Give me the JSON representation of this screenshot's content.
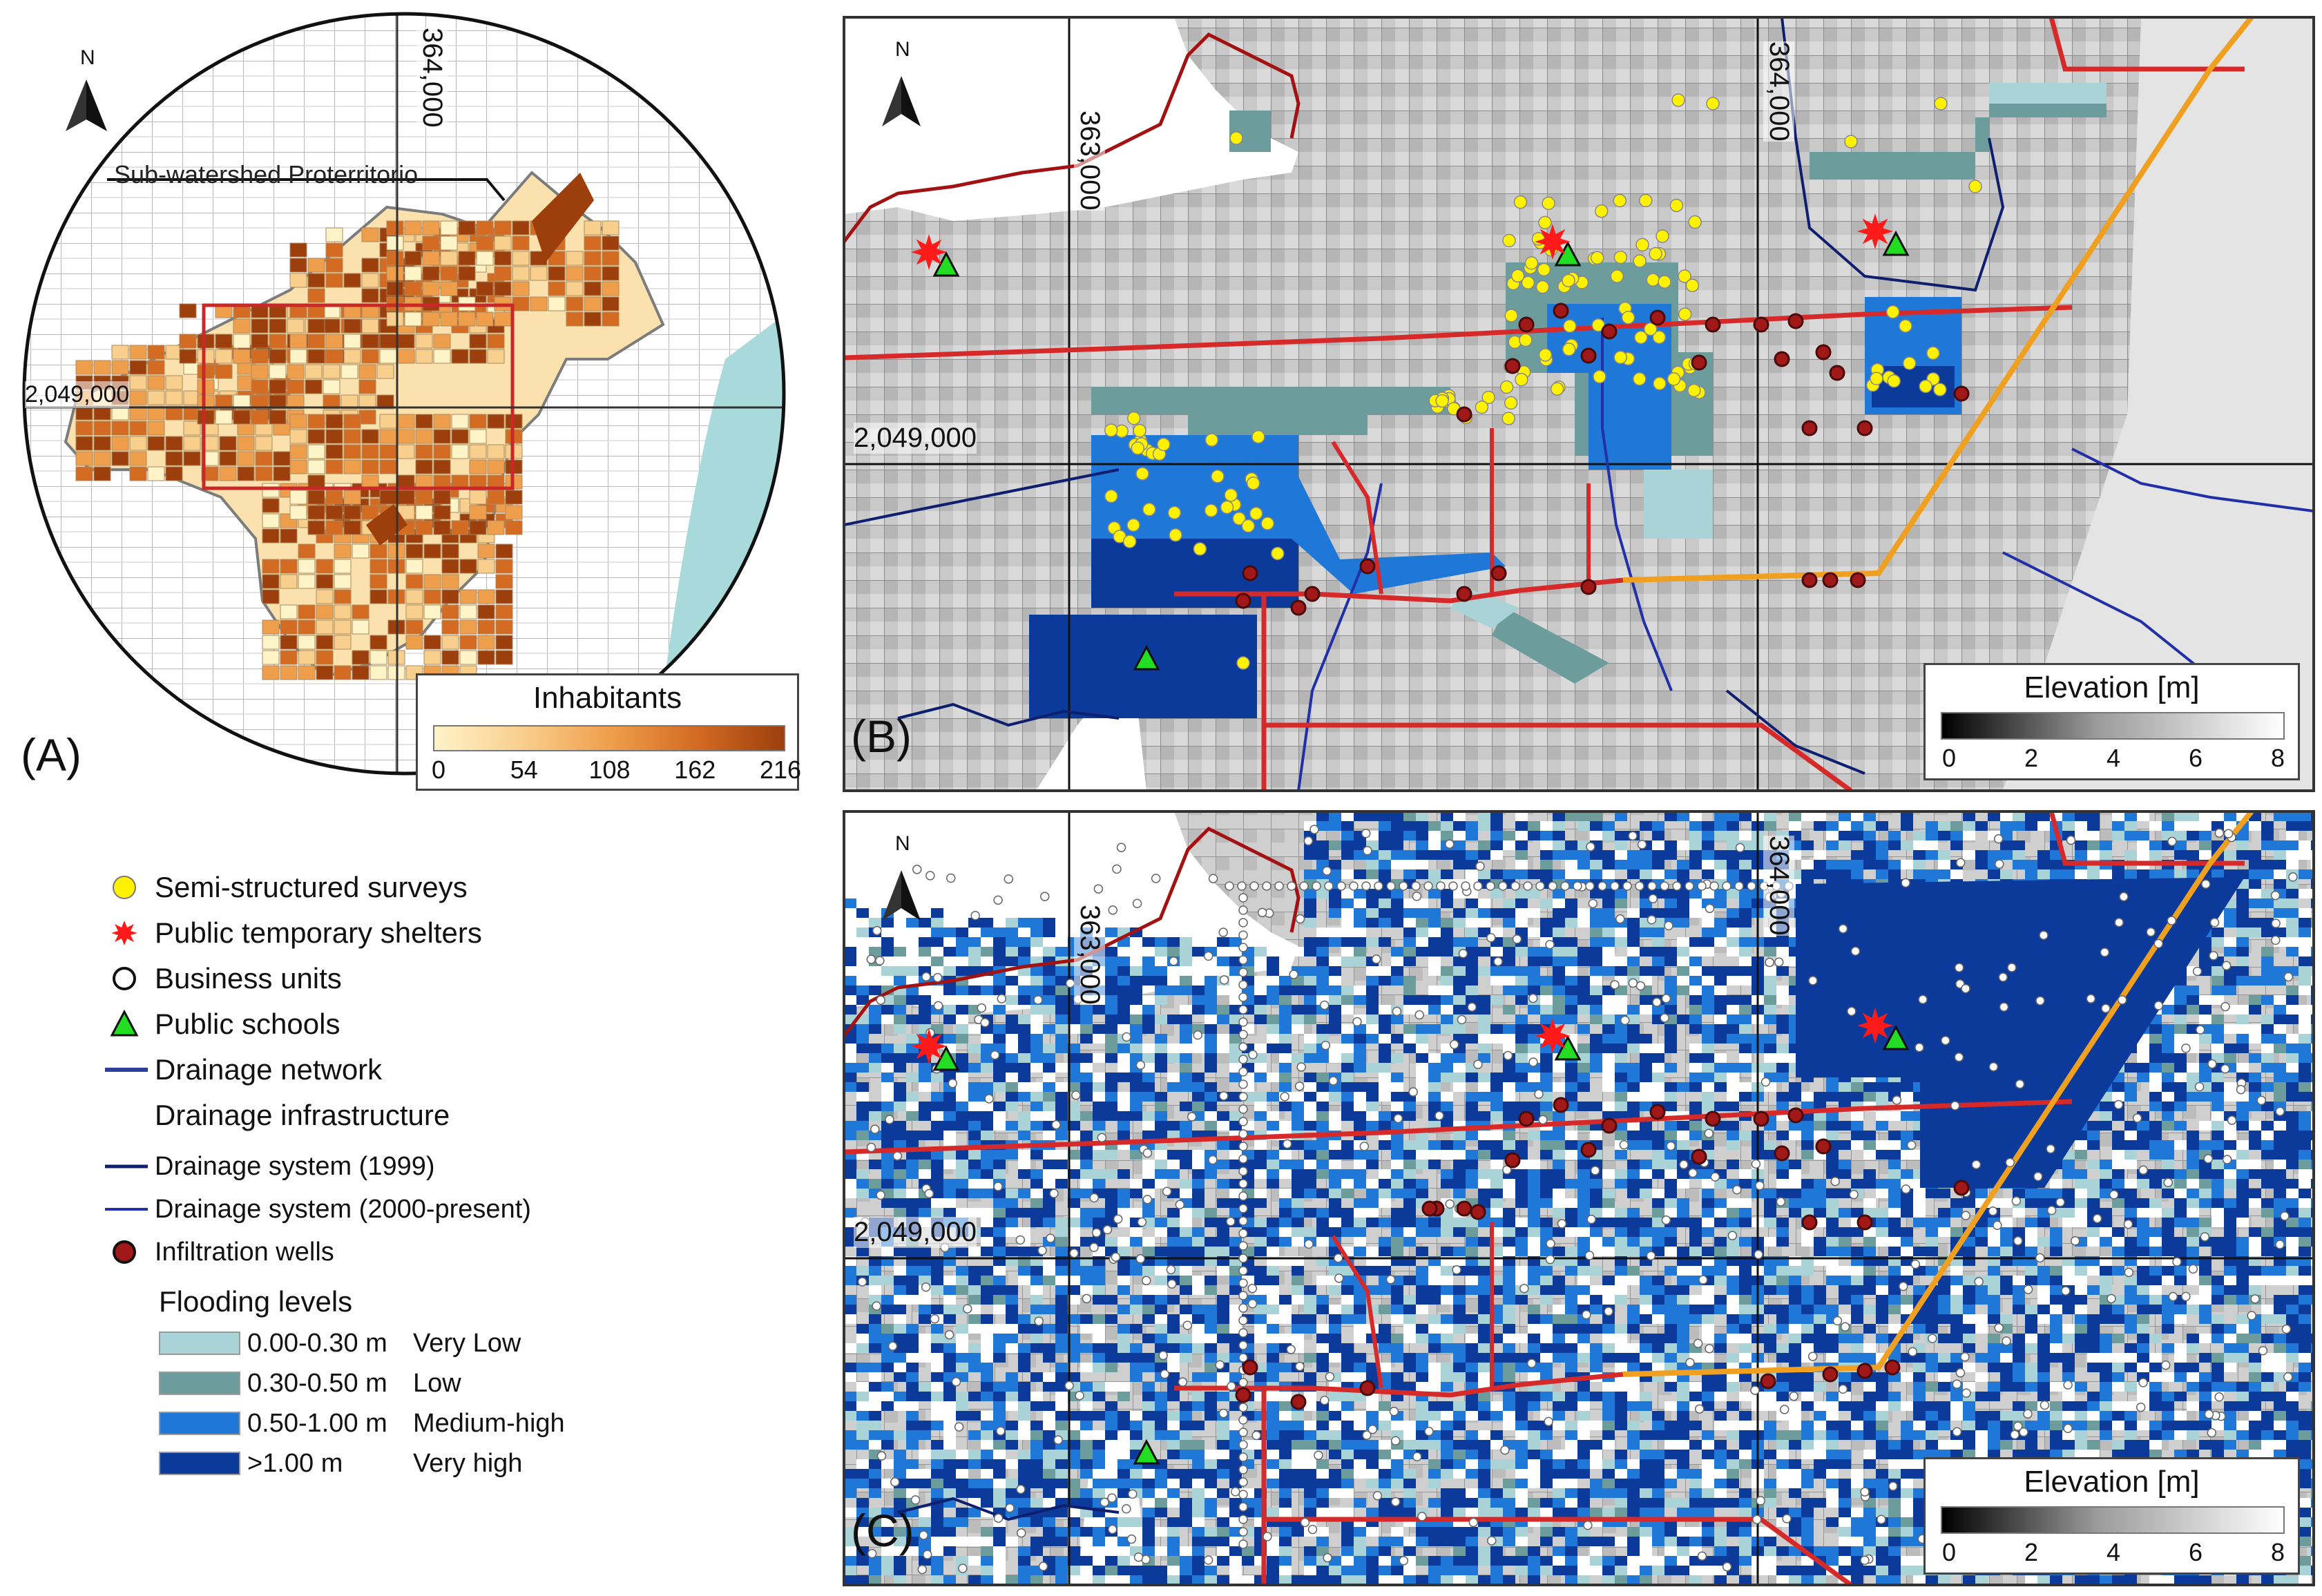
{
  "panels": {
    "a": {
      "label": "(A)",
      "watershed_label": "Sub-watershed Proterritorio",
      "coord_x": "364,000",
      "coord_y": "2,049,000"
    },
    "b": {
      "label": "(B)",
      "coord_x1": "363,000",
      "coord_x2": "364,000",
      "coord_y": "2,049,000"
    },
    "c": {
      "label": "(C)",
      "coord_x1": "363,000",
      "coord_x2": "364,000",
      "coord_y": "2,049,000"
    }
  },
  "north_arrow": {
    "letter": "N"
  },
  "inhabitants_legend": {
    "title": "Inhabitants",
    "ticks": [
      "0",
      "54",
      "108",
      "162",
      "216"
    ],
    "colors": [
      "#fff3c8",
      "#f9cf8e",
      "#ef9f4c",
      "#d36b22",
      "#9c3f0d"
    ]
  },
  "elevation_legend": {
    "title": "Elevation [m]",
    "ticks": [
      "0",
      "2",
      "4",
      "6",
      "8"
    ]
  },
  "legend": {
    "surveys": "Semi-structured surveys",
    "shelters": "Public temporary shelters",
    "business": "Business units",
    "schools": "Public schools",
    "drainage_network": "Drainage network",
    "drainage_infrastructure": "Drainage infrastructure",
    "system_1999": "Drainage system (1999)",
    "system_2000": "Drainage system (2000-present)",
    "wells": "Infiltration wells",
    "flooding_title": "Flooding levels",
    "flood_levels": [
      {
        "range": "0.00-0.30 m",
        "label": "Very Low",
        "color": "#a9d3d6"
      },
      {
        "range": "0.30-0.50 m",
        "label": "Low",
        "color": "#6c9c9c"
      },
      {
        "range": "0.50-1.00 m",
        "label": "Medium-high",
        "color": "#1f78d8"
      },
      {
        "range": ">1.00 m",
        "label": "Very high",
        "color": "#0b3a9a"
      }
    ]
  },
  "colors": {
    "survey": "#fff200",
    "shelter": "#ff1a1a",
    "school": "#22dd22",
    "drainage_network": "#2d3e9c",
    "system_1999": "#0d1f6e",
    "system_2000": "#2230a8",
    "well": "#a01818",
    "road_red": "#d62a2a",
    "road_orange": "#f0a020",
    "watershed_red": "#a31212"
  }
}
